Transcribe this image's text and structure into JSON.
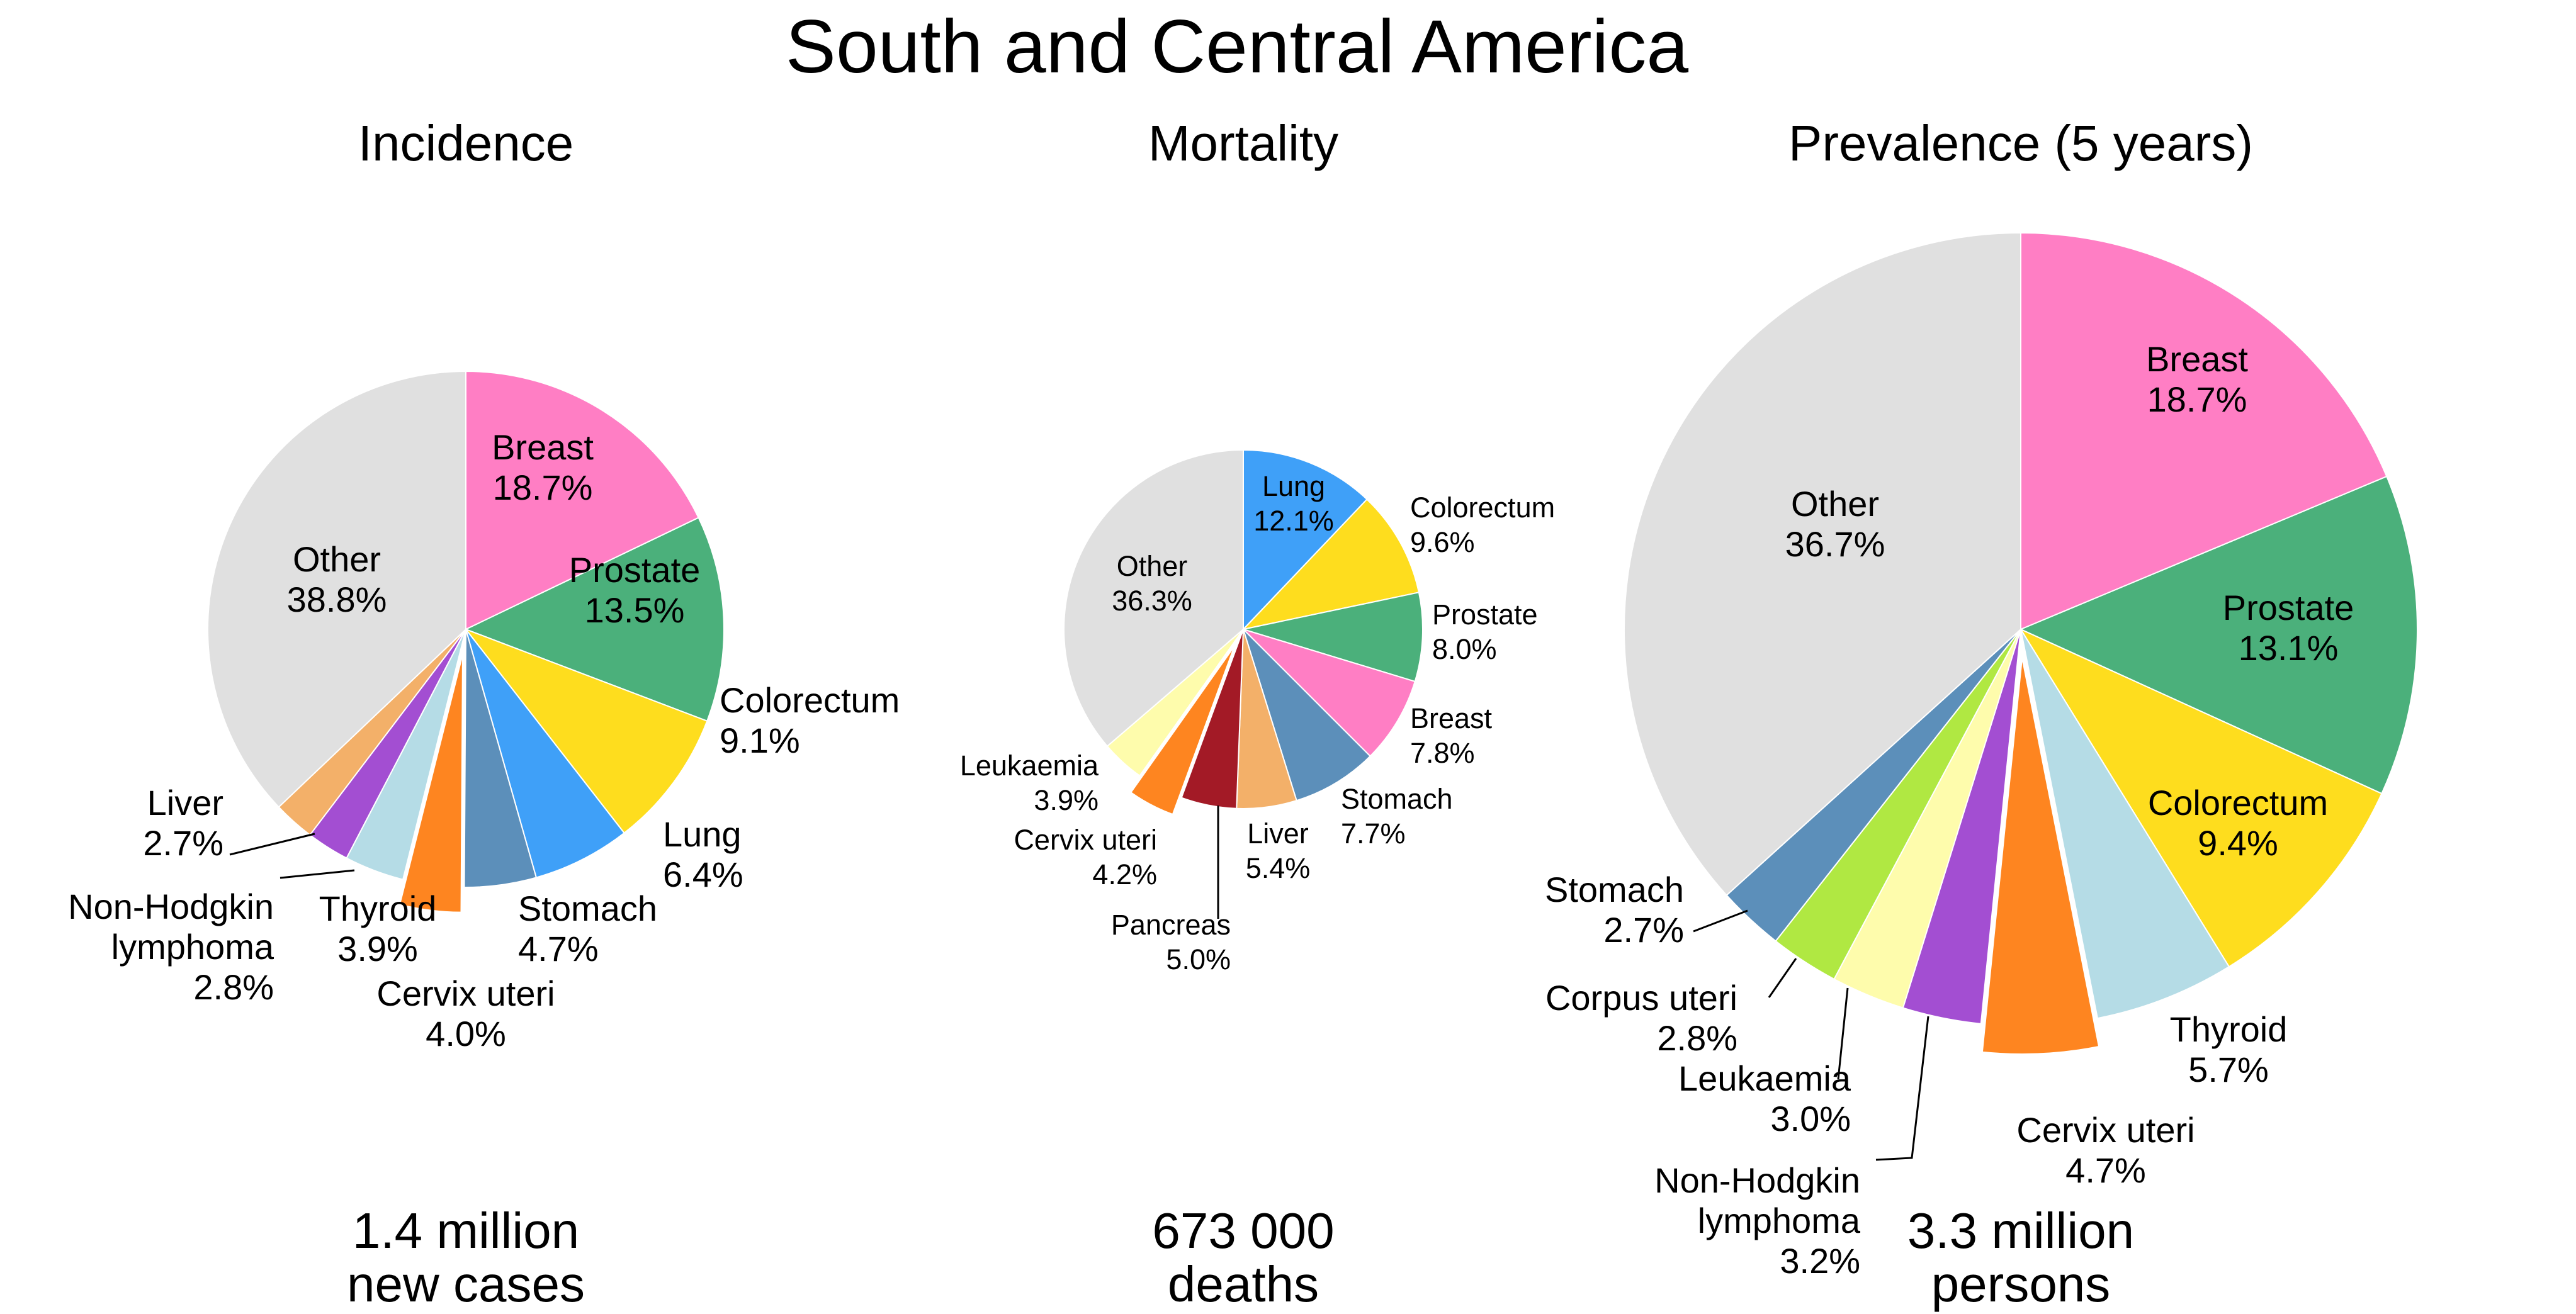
{
  "title": "South and Central America",
  "colors": {
    "Breast": "#ff7ec4",
    "Prostate": "#4bb07b",
    "Colorectum": "#fedd1e",
    "Lung": "#3fa0f8",
    "Stomach": "#5c8fba",
    "Cervix uteri": "#fe8520",
    "Thyroid": "#b5dce6",
    "Non-Hodgkin lymphoma": "#a34ed2",
    "Liver": "#f3b069",
    "Leukaemia": "#fefcac",
    "Pancreas": "#a31a26",
    "Corpus uteri": "#b0e842",
    "Other": "#e0e0e0"
  },
  "chart_data": [
    {
      "type": "pie",
      "title": "Incidence",
      "total_line1": "1.4 million",
      "total_line2": "new cases",
      "slices": [
        {
          "name": "Breast",
          "value": 18.7,
          "label": "18.7%"
        },
        {
          "name": "Prostate",
          "value": 13.5,
          "label": "13.5%"
        },
        {
          "name": "Colorectum",
          "value": 9.1,
          "label": "9.1%"
        },
        {
          "name": "Lung",
          "value": 6.4,
          "label": "6.4%"
        },
        {
          "name": "Stomach",
          "value": 4.7,
          "label": "4.7%"
        },
        {
          "name": "Cervix uteri",
          "value": 4.0,
          "label": "4.0%",
          "exploded": true
        },
        {
          "name": "Thyroid",
          "value": 3.9,
          "label": "3.9%"
        },
        {
          "name": "Non-Hodgkin lymphoma",
          "value": 2.8,
          "label": "2.8%",
          "display_lines": [
            "Non-Hodgkin",
            "lymphoma"
          ]
        },
        {
          "name": "Liver",
          "value": 2.7,
          "label": "2.7%"
        },
        {
          "name": "Other",
          "value": 38.8,
          "label": "38.8%"
        }
      ]
    },
    {
      "type": "pie",
      "title": "Mortality",
      "total_line1": "673 000",
      "total_line2": "deaths",
      "slices": [
        {
          "name": "Lung",
          "value": 12.1,
          "label": "12.1%"
        },
        {
          "name": "Colorectum",
          "value": 9.6,
          "label": "9.6%"
        },
        {
          "name": "Prostate",
          "value": 8.0,
          "label": "8.0%"
        },
        {
          "name": "Breast",
          "value": 7.8,
          "label": "7.8%"
        },
        {
          "name": "Stomach",
          "value": 7.7,
          "label": "7.7%"
        },
        {
          "name": "Liver",
          "value": 5.4,
          "label": "5.4%"
        },
        {
          "name": "Pancreas",
          "value": 5.0,
          "label": "5.0%"
        },
        {
          "name": "Cervix uteri",
          "value": 4.2,
          "label": "4.2%",
          "exploded": true
        },
        {
          "name": "Leukaemia",
          "value": 3.9,
          "label": "3.9%"
        },
        {
          "name": "Other",
          "value": 36.3,
          "label": "36.3%"
        }
      ]
    },
    {
      "type": "pie",
      "title": "Prevalence (5 years)",
      "total_line1": "3.3 million",
      "total_line2": "persons",
      "slices": [
        {
          "name": "Breast",
          "value": 18.7,
          "label": "18.7%"
        },
        {
          "name": "Prostate",
          "value": 13.1,
          "label": "13.1%"
        },
        {
          "name": "Colorectum",
          "value": 9.4,
          "label": "9.4%"
        },
        {
          "name": "Thyroid",
          "value": 5.7,
          "label": "5.7%"
        },
        {
          "name": "Cervix uteri",
          "value": 4.7,
          "label": "4.7%",
          "exploded": true
        },
        {
          "name": "Non-Hodgkin lymphoma",
          "value": 3.2,
          "label": "3.2%",
          "display_lines": [
            "Non-Hodgkin",
            "lymphoma"
          ]
        },
        {
          "name": "Leukaemia",
          "value": 3.0,
          "label": "3.0%"
        },
        {
          "name": "Corpus uteri",
          "value": 2.8,
          "label": "2.8%"
        },
        {
          "name": "Stomach",
          "value": 2.7,
          "label": "2.7%"
        },
        {
          "name": "Other",
          "value": 36.7,
          "label": "36.7%"
        }
      ]
    }
  ]
}
